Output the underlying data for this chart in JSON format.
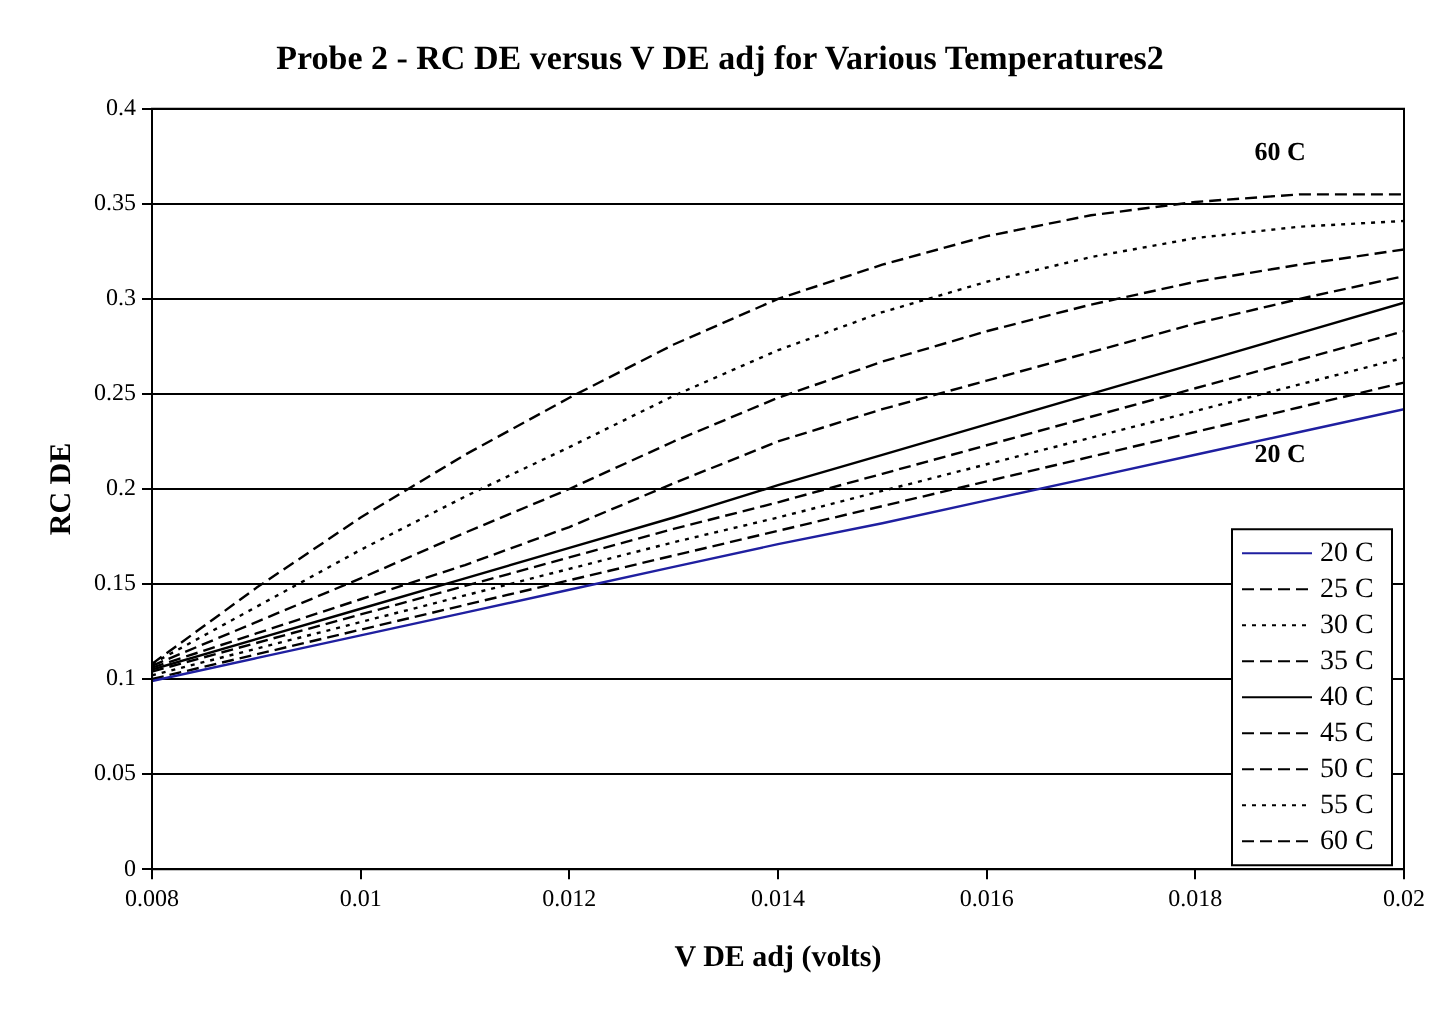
{
  "chart_data": {
    "type": "line",
    "title": "Probe 2 - RC DE versus V DE adj for Various Temperatures2",
    "xlabel": "V DE adj (volts)",
    "ylabel": "RC DE",
    "x": [
      0.008,
      0.009,
      0.01,
      0.011,
      0.012,
      0.013,
      0.014,
      0.015,
      0.016,
      0.017,
      0.018,
      0.019,
      0.02
    ],
    "series": [
      {
        "name": "20 C",
        "color": "#1f1fa0",
        "line_style": "solid",
        "values": [
          0.099,
          0.111,
          0.123,
          0.135,
          0.147,
          0.159,
          0.171,
          0.182,
          0.194,
          0.206,
          0.218,
          0.23,
          0.242
        ]
      },
      {
        "name": "25 C",
        "color": "#000000",
        "line_style": "dashed",
        "values": [
          0.1,
          0.113,
          0.126,
          0.139,
          0.152,
          0.165,
          0.178,
          0.191,
          0.204,
          0.217,
          0.23,
          0.243,
          0.256
        ]
      },
      {
        "name": "30 C",
        "color": "#000000",
        "line_style": "dotted",
        "values": [
          0.102,
          0.116,
          0.13,
          0.144,
          0.158,
          0.172,
          0.185,
          0.199,
          0.213,
          0.227,
          0.241,
          0.255,
          0.269
        ]
      },
      {
        "name": "35 C",
        "color": "#000000",
        "line_style": "dashed",
        "values": [
          0.104,
          0.119,
          0.134,
          0.149,
          0.164,
          0.179,
          0.193,
          0.208,
          0.223,
          0.238,
          0.253,
          0.268,
          0.283
        ]
      },
      {
        "name": "40 C",
        "color": "#000000",
        "line_style": "solid",
        "values": [
          0.105,
          0.121,
          0.137,
          0.153,
          0.169,
          0.185,
          0.202,
          0.218,
          0.234,
          0.25,
          0.266,
          0.282,
          0.298
        ]
      },
      {
        "name": "45 C",
        "color": "#000000",
        "line_style": "dashed",
        "values": [
          0.106,
          0.124,
          0.142,
          0.16,
          0.18,
          0.203,
          0.225,
          0.242,
          0.257,
          0.272,
          0.287,
          0.3,
          0.312
        ]
      },
      {
        "name": "50 C",
        "color": "#000000",
        "line_style": "dashed",
        "values": [
          0.107,
          0.13,
          0.153,
          0.177,
          0.2,
          0.225,
          0.248,
          0.267,
          0.283,
          0.297,
          0.309,
          0.318,
          0.326
        ]
      },
      {
        "name": "55 C",
        "color": "#000000",
        "line_style": "dotted",
        "values": [
          0.108,
          0.138,
          0.168,
          0.196,
          0.222,
          0.249,
          0.273,
          0.293,
          0.309,
          0.322,
          0.332,
          0.338,
          0.341
        ]
      },
      {
        "name": "60 C",
        "color": "#000000",
        "line_style": "dashed",
        "values": [
          0.108,
          0.148,
          0.185,
          0.218,
          0.248,
          0.276,
          0.3,
          0.318,
          0.333,
          0.344,
          0.351,
          0.355,
          0.355
        ]
      }
    ],
    "xlim": [
      0.008,
      0.02
    ],
    "xticks": [
      0.008,
      0.01,
      0.012,
      0.014,
      0.016,
      0.018,
      0.02
    ],
    "ylim": [
      0,
      0.4
    ],
    "yticks": [
      0,
      0.05,
      0.1,
      0.15,
      0.2,
      0.25,
      0.3,
      0.35,
      0.4
    ],
    "grid": "y",
    "legend": "bottom right",
    "marker": "none",
    "annotations": [
      "60 C",
      "20 C"
    ]
  }
}
